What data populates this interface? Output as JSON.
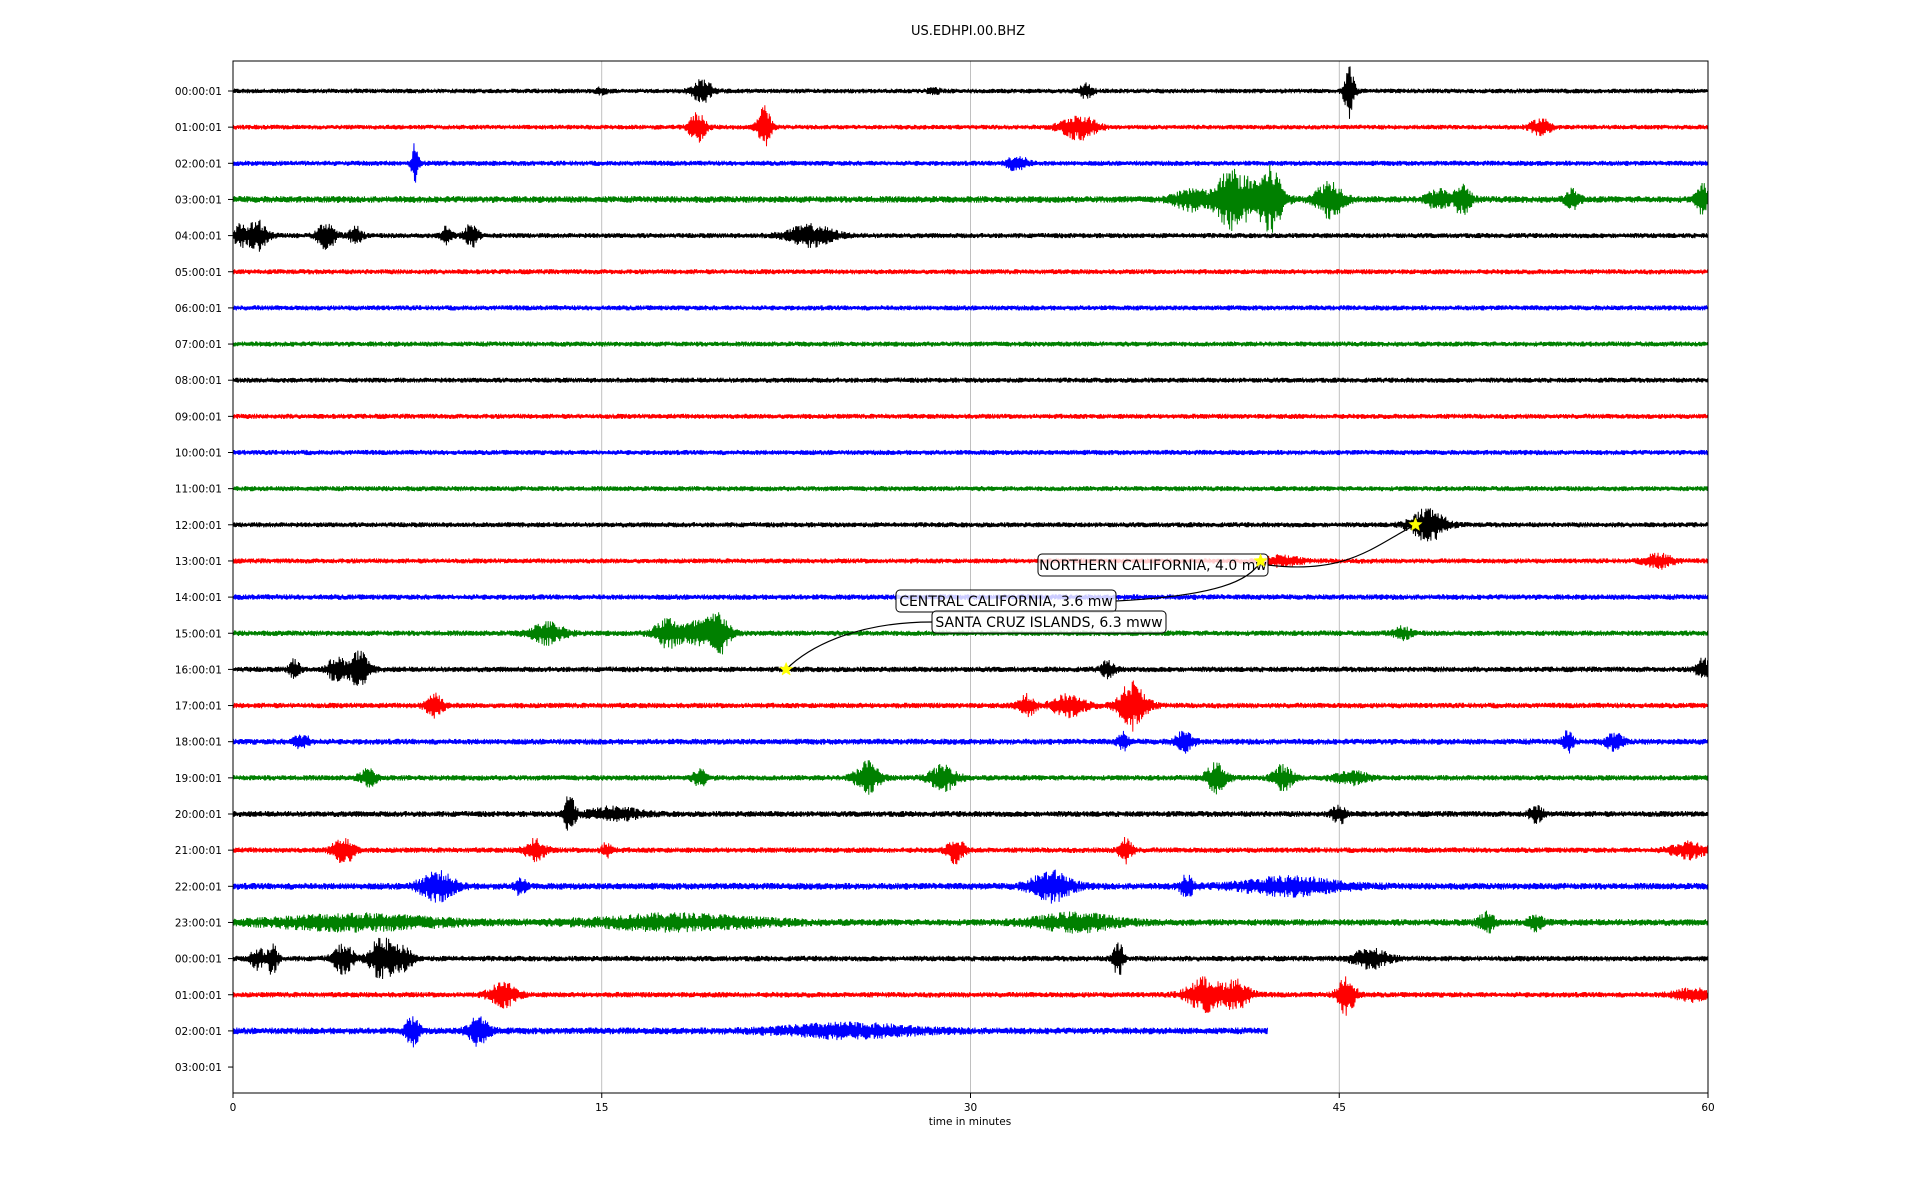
{
  "chart_data": {
    "type": "line",
    "title": "US.EDHPI.00.BHZ",
    "xlabel": "time in minutes",
    "ylabel": "",
    "xlim": [
      0,
      60
    ],
    "x_ticks": [
      0,
      15,
      30,
      45,
      60
    ],
    "grid": "vertical",
    "series_colors": [
      "#000000",
      "#ff0000",
      "#0000ff",
      "#008000"
    ],
    "rows": [
      {
        "label": "00:00:01",
        "color": "#000000",
        "end": 60,
        "noise": 2.4,
        "bursts": [
          [
            15,
            3,
            0.3
          ],
          [
            19.1,
            11,
            0.6
          ],
          [
            28.5,
            4,
            0.3
          ],
          [
            34.7,
            7,
            0.4
          ],
          [
            45.4,
            26,
            0.3
          ]
        ]
      },
      {
        "label": "01:00:01",
        "color": "#ff0000",
        "end": 60,
        "noise": 2.4,
        "bursts": [
          [
            18.9,
            14,
            0.5
          ],
          [
            21.6,
            20,
            0.4
          ],
          [
            34.4,
            12,
            1.0
          ],
          [
            53.2,
            8,
            0.6
          ]
        ]
      },
      {
        "label": "02:00:01",
        "color": "#0000ff",
        "end": 60,
        "noise": 2.6,
        "bursts": [
          [
            7.4,
            20,
            0.2
          ],
          [
            31.9,
            7,
            0.6
          ]
        ]
      },
      {
        "label": "03:00:01",
        "color": "#008000",
        "end": 60,
        "noise": 3.4,
        "bursts": [
          [
            39,
            10,
            1.0
          ],
          [
            40.5,
            24,
            0.8
          ],
          [
            41.5,
            18,
            1.2
          ],
          [
            42.3,
            24,
            0.6
          ],
          [
            44.6,
            18,
            0.8
          ],
          [
            49,
            10,
            0.6
          ],
          [
            50,
            14,
            0.5
          ],
          [
            54.5,
            9,
            0.4
          ],
          [
            59.8,
            14,
            0.4
          ]
        ]
      },
      {
        "label": "04:00:01",
        "color": "#000000",
        "end": 60,
        "noise": 2.6,
        "bursts": [
          [
            0.3,
            10,
            0.4
          ],
          [
            1.0,
            14,
            0.6
          ],
          [
            3.8,
            14,
            0.5
          ],
          [
            5,
            8,
            0.4
          ],
          [
            8.7,
            10,
            0.3
          ],
          [
            9.7,
            12,
            0.4
          ],
          [
            23.5,
            10,
            1.4
          ]
        ]
      },
      {
        "label": "05:00:01",
        "color": "#ff0000",
        "end": 60,
        "noise": 2.6,
        "bursts": []
      },
      {
        "label": "06:00:01",
        "color": "#0000ff",
        "end": 60,
        "noise": 2.6,
        "bursts": []
      },
      {
        "label": "07:00:01",
        "color": "#008000",
        "end": 60,
        "noise": 2.6,
        "bursts": []
      },
      {
        "label": "08:00:01",
        "color": "#000000",
        "end": 60,
        "noise": 2.6,
        "bursts": []
      },
      {
        "label": "09:00:01",
        "color": "#ff0000",
        "end": 60,
        "noise": 2.6,
        "bursts": []
      },
      {
        "label": "10:00:01",
        "color": "#0000ff",
        "end": 60,
        "noise": 2.6,
        "bursts": []
      },
      {
        "label": "11:00:01",
        "color": "#008000",
        "end": 60,
        "noise": 2.6,
        "bursts": []
      },
      {
        "label": "12:00:01",
        "color": "#000000",
        "end": 60,
        "noise": 2.6,
        "bursts": [
          [
            48.6,
            16,
            1.0
          ]
        ]
      },
      {
        "label": "13:00:01",
        "color": "#ff0000",
        "end": 60,
        "noise": 2.6,
        "bursts": [
          [
            42.7,
            5,
            1.0
          ],
          [
            58,
            7,
            0.8
          ]
        ]
      },
      {
        "label": "14:00:01",
        "color": "#0000ff",
        "end": 60,
        "noise": 2.8,
        "bursts": []
      },
      {
        "label": "15:00:01",
        "color": "#008000",
        "end": 60,
        "noise": 2.8,
        "bursts": [
          [
            12.8,
            10,
            1.0
          ],
          [
            17.7,
            14,
            0.8
          ],
          [
            19,
            12,
            0.9
          ],
          [
            19.8,
            18,
            0.6
          ],
          [
            47.6,
            6,
            0.5
          ]
        ]
      },
      {
        "label": "16:00:01",
        "color": "#000000",
        "end": 60,
        "noise": 2.8,
        "bursts": [
          [
            2.5,
            10,
            0.3
          ],
          [
            4.2,
            12,
            0.5
          ],
          [
            5.1,
            18,
            0.6
          ],
          [
            35.6,
            8,
            0.4
          ],
          [
            59.8,
            10,
            0.4
          ]
        ]
      },
      {
        "label": "17:00:01",
        "color": "#ff0000",
        "end": 60,
        "noise": 2.8,
        "bursts": [
          [
            8.2,
            12,
            0.5
          ],
          [
            32.3,
            10,
            0.5
          ],
          [
            34,
            10,
            1.0
          ],
          [
            36.6,
            24,
            0.8
          ]
        ]
      },
      {
        "label": "18:00:01",
        "color": "#0000ff",
        "end": 60,
        "noise": 3.0,
        "bursts": [
          [
            2.8,
            6,
            0.5
          ],
          [
            36.2,
            8,
            0.3
          ],
          [
            38.7,
            10,
            0.5
          ],
          [
            54.3,
            10,
            0.3
          ],
          [
            56.2,
            8,
            0.5
          ]
        ]
      },
      {
        "label": "19:00:01",
        "color": "#008000",
        "end": 60,
        "noise": 2.8,
        "bursts": [
          [
            5.5,
            8,
            0.5
          ],
          [
            19,
            8,
            0.4
          ],
          [
            25.8,
            16,
            0.7
          ],
          [
            28.9,
            12,
            0.8
          ],
          [
            40,
            14,
            0.6
          ],
          [
            42.7,
            12,
            0.6
          ],
          [
            45.5,
            6,
            1.0
          ]
        ]
      },
      {
        "label": "20:00:01",
        "color": "#000000",
        "end": 60,
        "noise": 3.0,
        "bursts": [
          [
            13.7,
            22,
            0.3
          ],
          [
            15.5,
            6,
            1.5
          ],
          [
            45,
            9,
            0.4
          ],
          [
            53,
            8,
            0.4
          ]
        ]
      },
      {
        "label": "21:00:01",
        "color": "#ff0000",
        "end": 60,
        "noise": 2.8,
        "bursts": [
          [
            4.5,
            14,
            0.6
          ],
          [
            12.3,
            10,
            0.6
          ],
          [
            15.2,
            7,
            0.3
          ],
          [
            29.4,
            12,
            0.5
          ],
          [
            36.3,
            12,
            0.4
          ],
          [
            59.2,
            8,
            1.0
          ]
        ]
      },
      {
        "label": "22:00:01",
        "color": "#0000ff",
        "end": 60,
        "noise": 3.4,
        "bursts": [
          [
            8.3,
            14,
            1.0
          ],
          [
            11.7,
            9,
            0.3
          ],
          [
            33.3,
            14,
            1.2
          ],
          [
            38.8,
            10,
            0.4
          ],
          [
            43,
            8,
            3.0
          ]
        ]
      },
      {
        "label": "23:00:01",
        "color": "#008000",
        "end": 60,
        "noise": 3.4,
        "bursts": [
          [
            5,
            7,
            5.0
          ],
          [
            18,
            7,
            5.0
          ],
          [
            34.3,
            8,
            2.5
          ],
          [
            51,
            9,
            0.5
          ],
          [
            53,
            8,
            0.4
          ]
        ]
      },
      {
        "label": "00:00:01",
        "color": "#000000",
        "end": 60,
        "noise": 2.8,
        "bursts": [
          [
            1.0,
            10,
            0.4
          ],
          [
            1.6,
            16,
            0.3
          ],
          [
            4.5,
            14,
            0.6
          ],
          [
            5.8,
            12,
            0.5
          ],
          [
            6.3,
            16,
            0.6
          ],
          [
            7,
            10,
            0.5
          ],
          [
            36,
            18,
            0.3
          ],
          [
            46.3,
            10,
            1.0
          ]
        ]
      },
      {
        "label": "01:00:01",
        "color": "#ff0000",
        "end": 60,
        "noise": 2.8,
        "bursts": [
          [
            11,
            12,
            0.8
          ],
          [
            39.5,
            16,
            1.0
          ],
          [
            40.8,
            14,
            0.8
          ],
          [
            45.3,
            20,
            0.5
          ],
          [
            59.3,
            6,
            1.0
          ]
        ]
      },
      {
        "label": "02:00:01",
        "color": "#0000ff",
        "end": 42.1,
        "noise": 3.4,
        "bursts": [
          [
            7.3,
            14,
            0.4
          ],
          [
            10,
            14,
            0.6
          ],
          [
            25,
            6,
            4.0
          ]
        ]
      },
      {
        "label": "03:00:01",
        "color": "#000000",
        "end": 0,
        "noise": 0,
        "bursts": []
      }
    ],
    "events": [
      {
        "label": "NORTHERN CALIFORNIA, 4.0 mw",
        "row": 12,
        "x": 48.1
      },
      {
        "label": "CENTRAL CALIFORNIA, 3.6 mw",
        "row": 13,
        "x": 41.8
      },
      {
        "label": "SANTA CRUZ ISLANDS, 6.3 mww",
        "row": 16,
        "x": 22.5
      }
    ]
  }
}
